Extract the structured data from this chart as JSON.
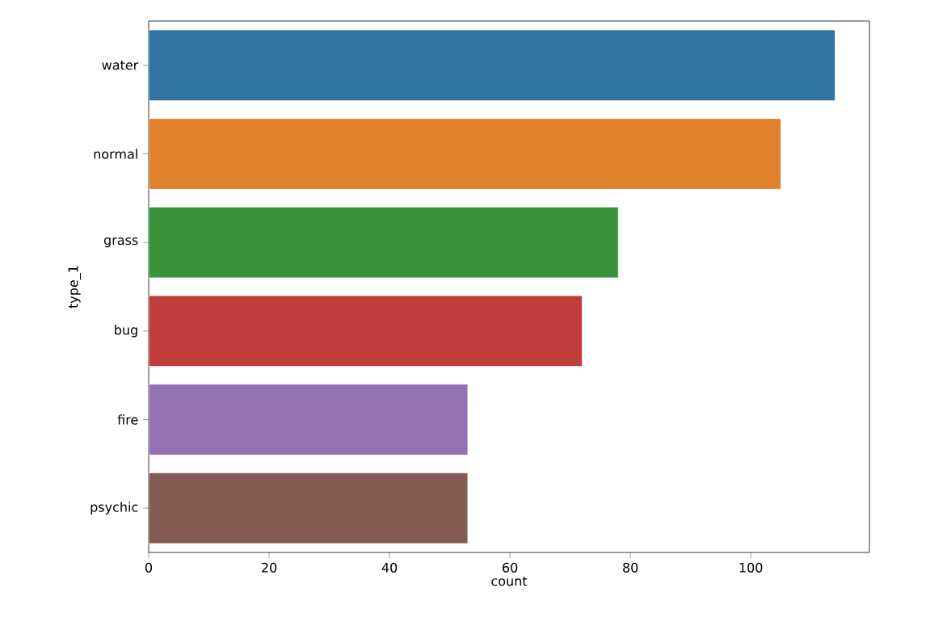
{
  "chart_data": {
    "type": "bar",
    "orientation": "horizontal",
    "xlabel": "count",
    "ylabel": "type_1",
    "categories": [
      "water",
      "normal",
      "grass",
      "bug",
      "fire",
      "psychic"
    ],
    "values": [
      114,
      105,
      78,
      72,
      53,
      53
    ],
    "colors": [
      "#3274a1",
      "#e1812c",
      "#3a923a",
      "#c03d3e",
      "#9372b2",
      "#845b53"
    ],
    "xlim": [
      0,
      119.7
    ],
    "xticks": [
      0,
      20,
      40,
      60,
      80,
      100
    ]
  }
}
